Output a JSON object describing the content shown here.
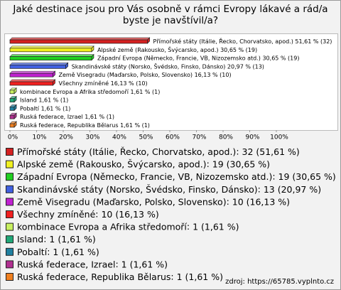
{
  "chart_data": {
    "type": "bar",
    "title": "Jaké destinace jsou pro Vás osobně v rámci Evropy lákavé a rád/a byste je navštívil/a?",
    "categories": [
      "Přímořské státy (Itálie, Řecko, Chorvatsko, apod.)",
      "Alpské země (Rakousko, Švýcarsko, apod.)",
      "Západní Evropa (Německo, Francie, VB, Nizozemsko atd.)",
      "Skandinávské státy (Norsko, Švédsko, Finsko, Dánsko)",
      "Země Visegradu (Maďarsko, Polsko, Slovensko)",
      "Všechny zmíněné",
      "kombinace Evropa a Afrika středomoří",
      "Island",
      "Pobaltí",
      "Ruská federace, Izrael",
      "Ruská federace, Republika Bělarus"
    ],
    "values": [
      51.61,
      30.65,
      30.65,
      20.97,
      16.13,
      16.13,
      1.61,
      1.61,
      1.61,
      1.61,
      1.61
    ],
    "value_labels": [
      "51,61 % (32)",
      "30,65 % (19)",
      "30,65 % (19)",
      "20,97 % (13)",
      "16,13 % (10)",
      "16,13 % (10)",
      "1,61 % (1)",
      "1,61 % (1)",
      "1,61 % (1)",
      "1,61 % (1)",
      "1,61 % (1)"
    ],
    "counts": [
      32,
      19,
      19,
      13,
      10,
      10,
      1,
      1,
      1,
      1,
      1
    ],
    "legend_value_labels": [
      "32 (51,61 %)",
      "19 (30,65 %)",
      "19 (30,65 %)",
      "13 (20,97 %)",
      "10 (16,13 %)",
      "10 (16,13 %)",
      "1 (1,61 %)",
      "1 (1,61 %)",
      "1 (1,61 %)",
      "1 (1,61 %)",
      "1 (1,61 %)"
    ],
    "colors": [
      "#d42020",
      "#f0f020",
      "#20d020",
      "#4060e0",
      "#c020d0",
      "#f02020",
      "#c8f060",
      "#20a878",
      "#2080a0",
      "#b03090",
      "#f08020"
    ],
    "xlim": [
      0,
      100
    ],
    "xticks": [
      {
        "value": 0,
        "label": "0%"
      },
      {
        "value": 10,
        "label": "10%"
      },
      {
        "value": 20,
        "label": "20%"
      },
      {
        "value": 30,
        "label": "30%"
      },
      {
        "value": 40,
        "label": "40%"
      },
      {
        "value": 50,
        "label": "50%"
      },
      {
        "value": 60,
        "label": "60%"
      },
      {
        "value": 70,
        "label": "70%"
      },
      {
        "value": 80,
        "label": "80%"
      },
      {
        "value": 90,
        "label": "90%"
      },
      {
        "value": 100,
        "label": "100%"
      }
    ],
    "source": "zdroj: https://65785.vyplnto.cz"
  }
}
